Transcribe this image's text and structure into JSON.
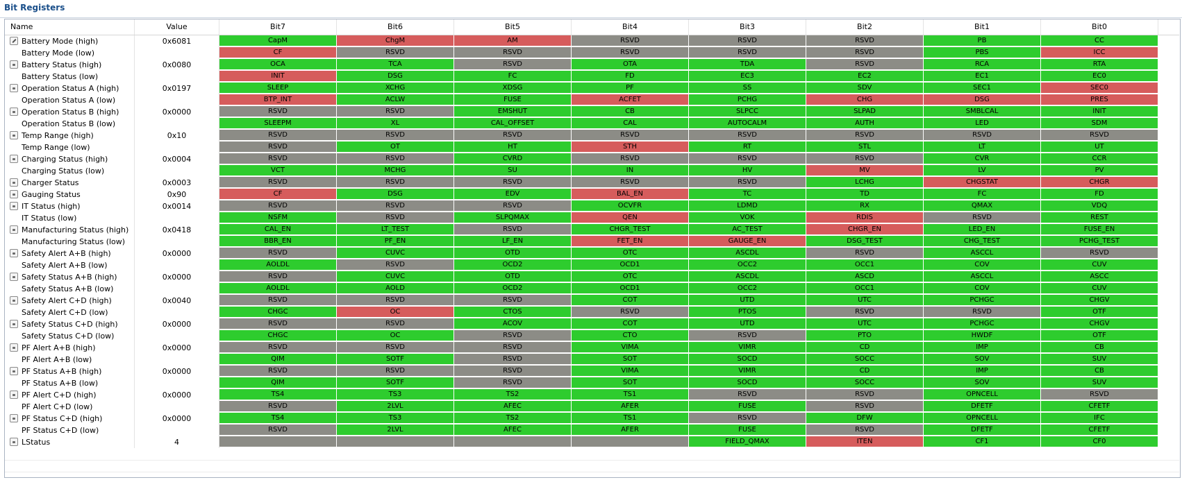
{
  "panel_title": "Bit Registers",
  "columns": {
    "name": "Name",
    "value": "Value",
    "bits": [
      "Bit7",
      "Bit6",
      "Bit5",
      "Bit4",
      "Bit3",
      "Bit2",
      "Bit1",
      "Bit0"
    ]
  },
  "colors": {
    "g": "#2ecc2e",
    "r": "#d65c5c",
    "s": "#8c8c86"
  },
  "rows": [
    {
      "name": "Battery Mode (high)",
      "value": "0x6081",
      "icon": "edit-icon",
      "bits": [
        [
          "CapM",
          "g"
        ],
        [
          "ChgM",
          "r"
        ],
        [
          "AM",
          "r"
        ],
        [
          "RSVD",
          "s"
        ],
        [
          "RSVD",
          "s"
        ],
        [
          "RSVD",
          "s"
        ],
        [
          "PB",
          "g"
        ],
        [
          "CC",
          "g"
        ]
      ]
    },
    {
      "name": "Battery Mode (low)",
      "value": "",
      "icon": "",
      "bits": [
        [
          "CF",
          "r"
        ],
        [
          "RSVD",
          "s"
        ],
        [
          "RSVD",
          "s"
        ],
        [
          "RSVD",
          "s"
        ],
        [
          "RSVD",
          "s"
        ],
        [
          "RSVD",
          "s"
        ],
        [
          "PBS",
          "g"
        ],
        [
          "ICC",
          "r"
        ]
      ]
    },
    {
      "name": "Battery Status (high)",
      "value": "0x0080",
      "icon": "lock-icon",
      "bits": [
        [
          "OCA",
          "g"
        ],
        [
          "TCA",
          "g"
        ],
        [
          "RSVD",
          "s"
        ],
        [
          "OTA",
          "g"
        ],
        [
          "TDA",
          "g"
        ],
        [
          "RSVD",
          "s"
        ],
        [
          "RCA",
          "g"
        ],
        [
          "RTA",
          "g"
        ]
      ]
    },
    {
      "name": "Battery Status (low)",
      "value": "",
      "icon": "",
      "bits": [
        [
          "INIT",
          "r"
        ],
        [
          "DSG",
          "g"
        ],
        [
          "FC",
          "g"
        ],
        [
          "FD",
          "g"
        ],
        [
          "EC3",
          "g"
        ],
        [
          "EC2",
          "g"
        ],
        [
          "EC1",
          "g"
        ],
        [
          "EC0",
          "g"
        ]
      ]
    },
    {
      "name": "Operation Status A (high)",
      "value": "0x0197",
      "icon": "lock-icon",
      "bits": [
        [
          "SLEEP",
          "g"
        ],
        [
          "XCHG",
          "g"
        ],
        [
          "XDSG",
          "g"
        ],
        [
          "PF",
          "g"
        ],
        [
          "SS",
          "g"
        ],
        [
          "SDV",
          "g"
        ],
        [
          "SEC1",
          "g"
        ],
        [
          "SEC0",
          "r"
        ]
      ]
    },
    {
      "name": "Operation Status A (low)",
      "value": "",
      "icon": "",
      "bits": [
        [
          "BTP_INT",
          "r"
        ],
        [
          "ACLW",
          "g"
        ],
        [
          "FUSE",
          "g"
        ],
        [
          "ACFET",
          "r"
        ],
        [
          "PCHG",
          "g"
        ],
        [
          "CHG",
          "r"
        ],
        [
          "DSG",
          "r"
        ],
        [
          "PRES",
          "r"
        ]
      ]
    },
    {
      "name": "Operation Status B (high)",
      "value": "0x0000",
      "icon": "lock-icon",
      "bits": [
        [
          "RSVD",
          "s"
        ],
        [
          "RSVD",
          "s"
        ],
        [
          "EMSHUT",
          "g"
        ],
        [
          "CB",
          "g"
        ],
        [
          "SLPCC",
          "g"
        ],
        [
          "SLPAD",
          "g"
        ],
        [
          "SMBLCAL",
          "g"
        ],
        [
          "INIT",
          "g"
        ]
      ]
    },
    {
      "name": "Operation Status B (low)",
      "value": "",
      "icon": "",
      "bits": [
        [
          "SLEEPM",
          "g"
        ],
        [
          "XL",
          "g"
        ],
        [
          "CAL_OFFSET",
          "g"
        ],
        [
          "CAL",
          "g"
        ],
        [
          "AUTOCALM",
          "g"
        ],
        [
          "AUTH",
          "g"
        ],
        [
          "LED",
          "g"
        ],
        [
          "SDM",
          "g"
        ]
      ]
    },
    {
      "name": "Temp Range (high)",
      "value": "0x10",
      "icon": "lock-icon",
      "bits": [
        [
          "RSVD",
          "s"
        ],
        [
          "RSVD",
          "s"
        ],
        [
          "RSVD",
          "s"
        ],
        [
          "RSVD",
          "s"
        ],
        [
          "RSVD",
          "s"
        ],
        [
          "RSVD",
          "s"
        ],
        [
          "RSVD",
          "s"
        ],
        [
          "RSVD",
          "s"
        ]
      ]
    },
    {
      "name": "Temp Range (low)",
      "value": "",
      "icon": "",
      "bits": [
        [
          "RSVD",
          "s"
        ],
        [
          "OT",
          "g"
        ],
        [
          "HT",
          "g"
        ],
        [
          "STH",
          "r"
        ],
        [
          "RT",
          "g"
        ],
        [
          "STL",
          "g"
        ],
        [
          "LT",
          "g"
        ],
        [
          "UT",
          "g"
        ]
      ]
    },
    {
      "name": "Charging Status (high)",
      "value": "0x0004",
      "icon": "lock-icon",
      "bits": [
        [
          "RSVD",
          "s"
        ],
        [
          "RSVD",
          "s"
        ],
        [
          "CVRD",
          "g"
        ],
        [
          "RSVD",
          "s"
        ],
        [
          "RSVD",
          "s"
        ],
        [
          "RSVD",
          "s"
        ],
        [
          "CVR",
          "g"
        ],
        [
          "CCR",
          "g"
        ]
      ]
    },
    {
      "name": "Charging Status (low)",
      "value": "",
      "icon": "",
      "bits": [
        [
          "VCT",
          "g"
        ],
        [
          "MCHG",
          "g"
        ],
        [
          "SU",
          "g"
        ],
        [
          "IN",
          "g"
        ],
        [
          "HV",
          "g"
        ],
        [
          "MV",
          "r"
        ],
        [
          "LV",
          "g"
        ],
        [
          "PV",
          "g"
        ]
      ]
    },
    {
      "name": "Charger Status",
      "value": "0x0003",
      "icon": "lock-icon",
      "bits": [
        [
          "RSVD",
          "s"
        ],
        [
          "RSVD",
          "s"
        ],
        [
          "RSVD",
          "s"
        ],
        [
          "RSVD",
          "s"
        ],
        [
          "RSVD",
          "s"
        ],
        [
          "LCHG",
          "g"
        ],
        [
          "CHGSTAT",
          "r"
        ],
        [
          "CHGR",
          "r"
        ]
      ]
    },
    {
      "name": "Gauging Status",
      "value": "0x90",
      "icon": "lock-icon",
      "bits": [
        [
          "CF",
          "r"
        ],
        [
          "DSG",
          "g"
        ],
        [
          "EDV",
          "g"
        ],
        [
          "BAL_EN",
          "r"
        ],
        [
          "TC",
          "g"
        ],
        [
          "TD",
          "g"
        ],
        [
          "FC",
          "g"
        ],
        [
          "FD",
          "g"
        ]
      ]
    },
    {
      "name": "IT Status (high)",
      "value": "0x0014",
      "icon": "lock-icon",
      "bits": [
        [
          "RSVD",
          "s"
        ],
        [
          "RSVD",
          "s"
        ],
        [
          "RSVD",
          "s"
        ],
        [
          "OCVFR",
          "g"
        ],
        [
          "LDMD",
          "g"
        ],
        [
          "RX",
          "g"
        ],
        [
          "QMAX",
          "g"
        ],
        [
          "VDQ",
          "g"
        ]
      ]
    },
    {
      "name": "IT Status (low)",
      "value": "",
      "icon": "",
      "bits": [
        [
          "NSFM",
          "g"
        ],
        [
          "RSVD",
          "s"
        ],
        [
          "SLPQMAX",
          "g"
        ],
        [
          "QEN",
          "r"
        ],
        [
          "VOK",
          "g"
        ],
        [
          "RDIS",
          "r"
        ],
        [
          "RSVD",
          "s"
        ],
        [
          "REST",
          "g"
        ]
      ]
    },
    {
      "name": "Manufacturing Status (high)",
      "value": "0x0418",
      "icon": "lock-icon",
      "bits": [
        [
          "CAL_EN",
          "g"
        ],
        [
          "LT_TEST",
          "g"
        ],
        [
          "RSVD",
          "s"
        ],
        [
          "CHGR_TEST",
          "g"
        ],
        [
          "AC_TEST",
          "g"
        ],
        [
          "CHGR_EN",
          "r"
        ],
        [
          "LED_EN",
          "g"
        ],
        [
          "FUSE_EN",
          "g"
        ]
      ]
    },
    {
      "name": "Manufacturing Status (low)",
      "value": "",
      "icon": "",
      "bits": [
        [
          "BBR_EN",
          "g"
        ],
        [
          "PF_EN",
          "g"
        ],
        [
          "LF_EN",
          "g"
        ],
        [
          "FET_EN",
          "r"
        ],
        [
          "GAUGE_EN",
          "r"
        ],
        [
          "DSG_TEST",
          "g"
        ],
        [
          "CHG_TEST",
          "g"
        ],
        [
          "PCHG_TEST",
          "g"
        ]
      ]
    },
    {
      "name": "Safety Alert A+B (high)",
      "value": "0x0000",
      "icon": "lock-icon",
      "bits": [
        [
          "RSVD",
          "s"
        ],
        [
          "CUVC",
          "g"
        ],
        [
          "OTD",
          "g"
        ],
        [
          "OTC",
          "g"
        ],
        [
          "ASCDL",
          "g"
        ],
        [
          "RSVD",
          "s"
        ],
        [
          "ASCCL",
          "g"
        ],
        [
          "RSVD",
          "s"
        ]
      ]
    },
    {
      "name": "Safety Alert A+B (low)",
      "value": "",
      "icon": "",
      "bits": [
        [
          "AOLDL",
          "g"
        ],
        [
          "RSVD",
          "s"
        ],
        [
          "OCD2",
          "g"
        ],
        [
          "OCD1",
          "g"
        ],
        [
          "OCC2",
          "g"
        ],
        [
          "OCC1",
          "g"
        ],
        [
          "COV",
          "g"
        ],
        [
          "CUV",
          "g"
        ]
      ]
    },
    {
      "name": "Safety Status A+B (high)",
      "value": "0x0000",
      "icon": "lock-icon",
      "bits": [
        [
          "RSVD",
          "s"
        ],
        [
          "CUVC",
          "g"
        ],
        [
          "OTD",
          "g"
        ],
        [
          "OTC",
          "g"
        ],
        [
          "ASCDL",
          "g"
        ],
        [
          "ASCD",
          "g"
        ],
        [
          "ASCCL",
          "g"
        ],
        [
          "ASCC",
          "g"
        ]
      ]
    },
    {
      "name": "Safety Status A+B (low)",
      "value": "",
      "icon": "",
      "bits": [
        [
          "AOLDL",
          "g"
        ],
        [
          "AOLD",
          "g"
        ],
        [
          "OCD2",
          "g"
        ],
        [
          "OCD1",
          "g"
        ],
        [
          "OCC2",
          "g"
        ],
        [
          "OCC1",
          "g"
        ],
        [
          "COV",
          "g"
        ],
        [
          "CUV",
          "g"
        ]
      ]
    },
    {
      "name": "Safety Alert C+D (high)",
      "value": "0x0040",
      "icon": "lock-icon",
      "bits": [
        [
          "RSVD",
          "s"
        ],
        [
          "RSVD",
          "s"
        ],
        [
          "RSVD",
          "s"
        ],
        [
          "COT",
          "g"
        ],
        [
          "UTD",
          "g"
        ],
        [
          "UTC",
          "g"
        ],
        [
          "PCHGC",
          "g"
        ],
        [
          "CHGV",
          "g"
        ]
      ]
    },
    {
      "name": "Safety Alert C+D (low)",
      "value": "",
      "icon": "",
      "bits": [
        [
          "CHGC",
          "g"
        ],
        [
          "OC",
          "r"
        ],
        [
          "CTOS",
          "g"
        ],
        [
          "RSVD",
          "s"
        ],
        [
          "PTOS",
          "g"
        ],
        [
          "RSVD",
          "s"
        ],
        [
          "RSVD",
          "s"
        ],
        [
          "OTF",
          "g"
        ]
      ]
    },
    {
      "name": "Safety Status C+D (high)",
      "value": "0x0000",
      "icon": "lock-icon",
      "bits": [
        [
          "RSVD",
          "s"
        ],
        [
          "RSVD",
          "s"
        ],
        [
          "ACOV",
          "g"
        ],
        [
          "COT",
          "g"
        ],
        [
          "UTD",
          "g"
        ],
        [
          "UTC",
          "g"
        ],
        [
          "PCHGC",
          "g"
        ],
        [
          "CHGV",
          "g"
        ]
      ]
    },
    {
      "name": "Safety Status C+D (low)",
      "value": "",
      "icon": "",
      "bits": [
        [
          "CHGC",
          "g"
        ],
        [
          "OC",
          "g"
        ],
        [
          "RSVD",
          "s"
        ],
        [
          "CTO",
          "g"
        ],
        [
          "RSVD",
          "s"
        ],
        [
          "PTO",
          "g"
        ],
        [
          "HWDF",
          "g"
        ],
        [
          "OTF",
          "g"
        ]
      ]
    },
    {
      "name": "PF Alert A+B (high)",
      "value": "0x0000",
      "icon": "lock-icon",
      "bits": [
        [
          "RSVD",
          "s"
        ],
        [
          "RSVD",
          "s"
        ],
        [
          "RSVD",
          "s"
        ],
        [
          "VIMA",
          "g"
        ],
        [
          "VIMR",
          "g"
        ],
        [
          "CD",
          "g"
        ],
        [
          "IMP",
          "g"
        ],
        [
          "CB",
          "g"
        ]
      ]
    },
    {
      "name": "PF Alert A+B (low)",
      "value": "",
      "icon": "",
      "bits": [
        [
          "QIM",
          "g"
        ],
        [
          "SOTF",
          "g"
        ],
        [
          "RSVD",
          "s"
        ],
        [
          "SOT",
          "g"
        ],
        [
          "SOCD",
          "g"
        ],
        [
          "SOCC",
          "g"
        ],
        [
          "SOV",
          "g"
        ],
        [
          "SUV",
          "g"
        ]
      ]
    },
    {
      "name": "PF Status A+B (high)",
      "value": "0x0000",
      "icon": "lock-icon",
      "bits": [
        [
          "RSVD",
          "s"
        ],
        [
          "RSVD",
          "s"
        ],
        [
          "RSVD",
          "s"
        ],
        [
          "VIMA",
          "g"
        ],
        [
          "VIMR",
          "g"
        ],
        [
          "CD",
          "g"
        ],
        [
          "IMP",
          "g"
        ],
        [
          "CB",
          "g"
        ]
      ]
    },
    {
      "name": "PF Status A+B (low)",
      "value": "",
      "icon": "",
      "bits": [
        [
          "QIM",
          "g"
        ],
        [
          "SOTF",
          "g"
        ],
        [
          "RSVD",
          "s"
        ],
        [
          "SOT",
          "g"
        ],
        [
          "SOCD",
          "g"
        ],
        [
          "SOCC",
          "g"
        ],
        [
          "SOV",
          "g"
        ],
        [
          "SUV",
          "g"
        ]
      ]
    },
    {
      "name": "PF Alert C+D (high)",
      "value": "0x0000",
      "icon": "lock-icon",
      "bits": [
        [
          "TS4",
          "g"
        ],
        [
          "TS3",
          "g"
        ],
        [
          "TS2",
          "g"
        ],
        [
          "TS1",
          "g"
        ],
        [
          "RSVD",
          "s"
        ],
        [
          "RSVD",
          "s"
        ],
        [
          "OPNCELL",
          "g"
        ],
        [
          "RSVD",
          "s"
        ]
      ]
    },
    {
      "name": "PF Alert C+D (low)",
      "value": "",
      "icon": "",
      "bits": [
        [
          "RSVD",
          "s"
        ],
        [
          "2LVL",
          "g"
        ],
        [
          "AFEC",
          "g"
        ],
        [
          "AFER",
          "g"
        ],
        [
          "FUSE",
          "g"
        ],
        [
          "RSVD",
          "s"
        ],
        [
          "DFETF",
          "g"
        ],
        [
          "CFETF",
          "g"
        ]
      ]
    },
    {
      "name": "PF Status C+D (high)",
      "value": "0x0000",
      "icon": "lock-icon",
      "bits": [
        [
          "TS4",
          "g"
        ],
        [
          "TS3",
          "g"
        ],
        [
          "TS2",
          "g"
        ],
        [
          "TS1",
          "g"
        ],
        [
          "RSVD",
          "s"
        ],
        [
          "DFW",
          "g"
        ],
        [
          "OPNCELL",
          "g"
        ],
        [
          "IFC",
          "g"
        ]
      ]
    },
    {
      "name": "PF Status C+D (low)",
      "value": "",
      "icon": "",
      "bits": [
        [
          "RSVD",
          "s"
        ],
        [
          "2LVL",
          "g"
        ],
        [
          "AFEC",
          "g"
        ],
        [
          "AFER",
          "g"
        ],
        [
          "FUSE",
          "g"
        ],
        [
          "RSVD",
          "s"
        ],
        [
          "DFETF",
          "g"
        ],
        [
          "CFETF",
          "g"
        ]
      ]
    },
    {
      "name": "LStatus",
      "value": "4",
      "icon": "lock-icon",
      "bits": [
        [
          "",
          "s"
        ],
        [
          "",
          "s"
        ],
        [
          "",
          "s"
        ],
        [
          "",
          "s"
        ],
        [
          "FIELD_QMAX",
          "g"
        ],
        [
          "ITEN",
          "r"
        ],
        [
          "CF1",
          "g"
        ],
        [
          "CF0",
          "g"
        ]
      ]
    }
  ]
}
